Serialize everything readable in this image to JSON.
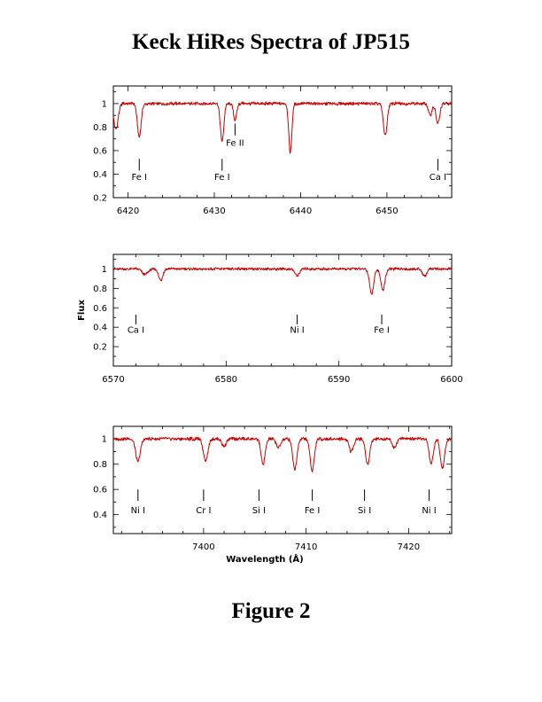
{
  "title": "Keck HiRes Spectra of JP515",
  "caption": "Figure 2",
  "colors": {
    "spectrum": "#cc0000",
    "axes": "#000000"
  },
  "chart_data": [
    {
      "type": "line",
      "series": [
        {
          "name": ""
        }
      ],
      "xlim": [
        6418.3,
        6457.5
      ],
      "ylim": [
        0.2,
        1.15
      ],
      "xticks": [
        6420,
        6430,
        6440,
        6450
      ],
      "yticks": [
        0.2,
        0.4,
        0.6,
        0.8,
        1
      ],
      "xlabel": "",
      "ylabel": "",
      "continuum": 1.0,
      "lines": [
        {
          "x": 6418.6,
          "depth": 0.22,
          "width": 0.25
        },
        {
          "x": 6421.3,
          "depth": 0.28,
          "width": 0.22
        },
        {
          "x": 6430.9,
          "depth": 0.32,
          "width": 0.2
        },
        {
          "x": 6432.4,
          "depth": 0.14,
          "width": 0.18
        },
        {
          "x": 6438.8,
          "depth": 0.42,
          "width": 0.18
        },
        {
          "x": 6449.8,
          "depth": 0.27,
          "width": 0.22
        },
        {
          "x": 6455.0,
          "depth": 0.1,
          "width": 0.2
        },
        {
          "x": 6455.9,
          "depth": 0.17,
          "width": 0.22
        }
      ],
      "annotations": [
        {
          "label": "Fe I",
          "x": 6421.3,
          "tick_top": 0.53,
          "tick_bottom": 0.43,
          "text_y": 0.35
        },
        {
          "label": "Fe I",
          "x": 6430.9,
          "tick_top": 0.53,
          "tick_bottom": 0.43,
          "text_y": 0.35
        },
        {
          "label": "Fe II",
          "x": 6432.4,
          "tick_top": 0.83,
          "tick_bottom": 0.73,
          "text_y": 0.64
        },
        {
          "label": "Ca I",
          "x": 6455.9,
          "tick_top": 0.53,
          "tick_bottom": 0.43,
          "text_y": 0.35
        }
      ]
    },
    {
      "type": "line",
      "series": [
        {
          "name": ""
        }
      ],
      "xlim": [
        6570,
        6600
      ],
      "ylim": [
        0.0,
        1.15
      ],
      "xticks": [
        6570,
        6580,
        6590,
        6600
      ],
      "yticks": [
        0.2,
        0.4,
        0.6,
        0.8,
        1
      ],
      "xlabel": "",
      "ylabel": "Flux",
      "continuum": 1.0,
      "lines": [
        {
          "x": 6572.8,
          "depth": 0.06,
          "width": 0.25
        },
        {
          "x": 6574.2,
          "depth": 0.12,
          "width": 0.18
        },
        {
          "x": 6586.3,
          "depth": 0.07,
          "width": 0.2
        },
        {
          "x": 6592.9,
          "depth": 0.26,
          "width": 0.18
        },
        {
          "x": 6593.9,
          "depth": 0.22,
          "width": 0.18
        },
        {
          "x": 6597.6,
          "depth": 0.08,
          "width": 0.18
        }
      ],
      "annotations": [
        {
          "label": "Ca I",
          "x": 6572.0,
          "tick_top": 0.53,
          "tick_bottom": 0.43,
          "text_y": 0.34
        },
        {
          "label": "Ni I",
          "x": 6586.3,
          "tick_top": 0.53,
          "tick_bottom": 0.43,
          "text_y": 0.34
        },
        {
          "label": "Fe I",
          "x": 6593.8,
          "tick_top": 0.53,
          "tick_bottom": 0.43,
          "text_y": 0.34
        }
      ]
    },
    {
      "type": "line",
      "series": [
        {
          "name": ""
        }
      ],
      "xlim": [
        7391.2,
        7424.2
      ],
      "ylim": [
        0.25,
        1.1
      ],
      "xticks": [
        7400,
        7410,
        7420
      ],
      "yticks": [
        0.4,
        0.6,
        0.8,
        1
      ],
      "xlabel": "Wavelength (Å)",
      "ylabel": "",
      "continuum": 1.0,
      "lines": [
        {
          "x": 7393.6,
          "depth": 0.18,
          "width": 0.22
        },
        {
          "x": 7400.2,
          "depth": 0.17,
          "width": 0.22
        },
        {
          "x": 7402.0,
          "depth": 0.06,
          "width": 0.2
        },
        {
          "x": 7405.8,
          "depth": 0.2,
          "width": 0.2
        },
        {
          "x": 7407.3,
          "depth": 0.07,
          "width": 0.2
        },
        {
          "x": 7408.9,
          "depth": 0.24,
          "width": 0.2
        },
        {
          "x": 7410.6,
          "depth": 0.25,
          "width": 0.2
        },
        {
          "x": 7414.4,
          "depth": 0.1,
          "width": 0.2
        },
        {
          "x": 7416.0,
          "depth": 0.2,
          "width": 0.2
        },
        {
          "x": 7418.6,
          "depth": 0.07,
          "width": 0.2
        },
        {
          "x": 7422.2,
          "depth": 0.2,
          "width": 0.2
        },
        {
          "x": 7423.3,
          "depth": 0.23,
          "width": 0.2
        }
      ],
      "annotations": [
        {
          "label": "Ni I",
          "x": 7393.6,
          "tick_top": 0.6,
          "tick_bottom": 0.51,
          "text_y": 0.41
        },
        {
          "label": "Cr I",
          "x": 7400.0,
          "tick_top": 0.6,
          "tick_bottom": 0.51,
          "text_y": 0.41
        },
        {
          "label": "Si I",
          "x": 7405.4,
          "tick_top": 0.6,
          "tick_bottom": 0.51,
          "text_y": 0.41
        },
        {
          "label": "Fe I",
          "x": 7410.6,
          "tick_top": 0.6,
          "tick_bottom": 0.51,
          "text_y": 0.41
        },
        {
          "label": "Si I",
          "x": 7415.7,
          "tick_top": 0.6,
          "tick_bottom": 0.51,
          "text_y": 0.41
        },
        {
          "label": "Ni I",
          "x": 7422.0,
          "tick_top": 0.6,
          "tick_bottom": 0.51,
          "text_y": 0.41
        }
      ]
    }
  ]
}
